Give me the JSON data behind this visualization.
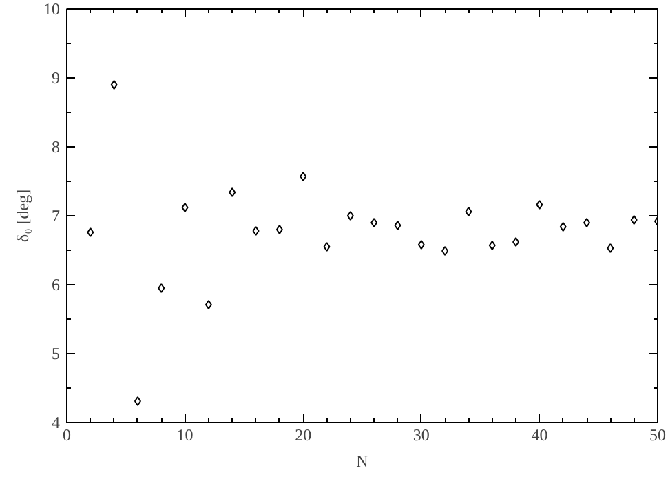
{
  "chart_data": {
    "type": "scatter",
    "xlabel": "N",
    "ylabel": "δ₀ [deg]",
    "x": [
      2,
      4,
      6,
      8,
      10,
      12,
      14,
      16,
      18,
      20,
      22,
      24,
      26,
      28,
      30,
      32,
      34,
      36,
      38,
      40,
      42,
      44,
      46,
      48,
      50
    ],
    "series": [
      {
        "color": "#000000",
        "values": [
          6.76,
          8.9,
          4.31,
          5.95,
          7.12,
          5.71,
          7.34,
          6.78,
          6.8,
          7.57,
          6.55,
          7.0,
          6.9,
          6.86,
          6.58,
          6.49,
          7.06,
          6.57,
          6.62,
          7.16,
          6.84,
          6.9,
          6.53,
          6.94,
          6.92
        ]
      }
    ],
    "xlim": [
      0,
      50
    ],
    "xticks": [
      0,
      10,
      20,
      30,
      40,
      50
    ],
    "ylim": [
      4,
      10
    ],
    "yticks": [
      4,
      5,
      6,
      7,
      8,
      9,
      10
    ],
    "marker": "diamond",
    "grid": false
  }
}
